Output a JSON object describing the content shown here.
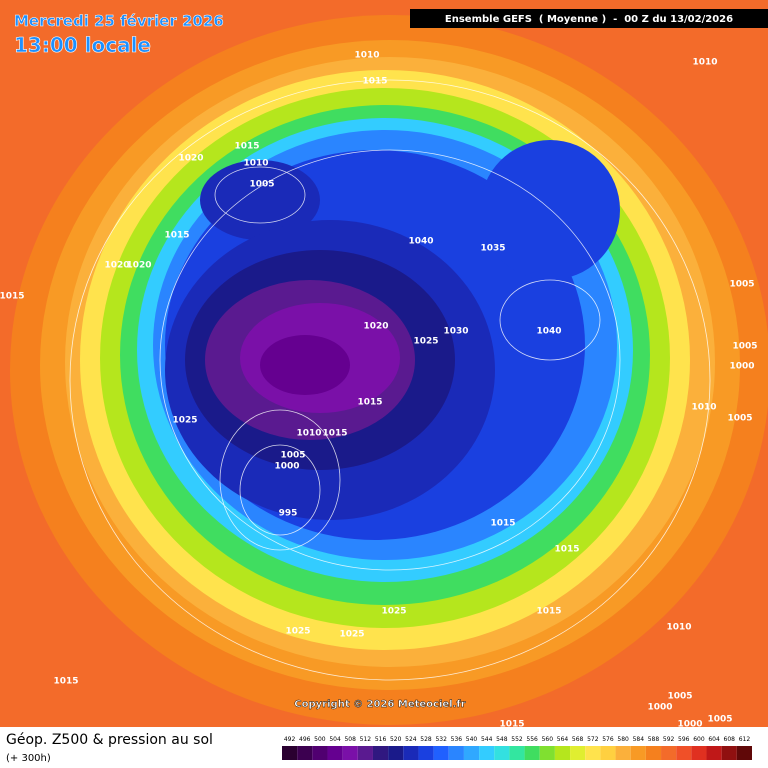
{
  "header": {
    "date": "Mercredi 25 février 2026",
    "time": "13:00 locale",
    "run_info": "Ensemble GEFS  ( Moyenne )  -  00 Z du 13/02/2026"
  },
  "map": {
    "pressure_labels": [
      "1010",
      "1015",
      "1010",
      "1020",
      "1015",
      "1010",
      "1005",
      "1015",
      "1040",
      "1035",
      "1020",
      "1020",
      "1015",
      "1005",
      "1020",
      "1030",
      "1025",
      "1040",
      "1005",
      "1000",
      "1015",
      "1010",
      "1005",
      "1025",
      "1010",
      "1015",
      "1005",
      "1000",
      "995",
      "1015",
      "1015",
      "1025",
      "1015",
      "1025",
      "1025",
      "1010",
      "1015",
      "1005",
      "1000",
      "1000",
      "1005",
      "1015"
    ],
    "copyright": "Copyright © 2026 Meteociel.fr"
  },
  "footer": {
    "title": "Géop. Z500 & pression au sol",
    "lead_time": "(+ 300h)"
  },
  "legend": {
    "values": [
      492,
      496,
      500,
      504,
      508,
      512,
      516,
      520,
      524,
      528,
      532,
      536,
      540,
      544,
      548,
      552,
      556,
      560,
      564,
      568,
      572,
      576,
      580,
      584,
      588,
      592,
      596,
      600,
      604,
      608,
      612
    ],
    "colors": [
      "#2a0030",
      "#3c0050",
      "#500070",
      "#650090",
      "#7a10a8",
      "#5a1a90",
      "#301880",
      "#1a1a8a",
      "#1a2ab8",
      "#1a40e0",
      "#2060ff",
      "#2a85ff",
      "#30a8ff",
      "#33ccff",
      "#33e0e0",
      "#33e6a0",
      "#40dd60",
      "#80e030",
      "#b5e61d",
      "#e0ee30",
      "#ffe34d",
      "#ffd040",
      "#fbb03b",
      "#f89a25",
      "#f5801e",
      "#f36b2a",
      "#f05028",
      "#e03020",
      "#c01818",
      "#901010",
      "#600808"
    ]
  }
}
